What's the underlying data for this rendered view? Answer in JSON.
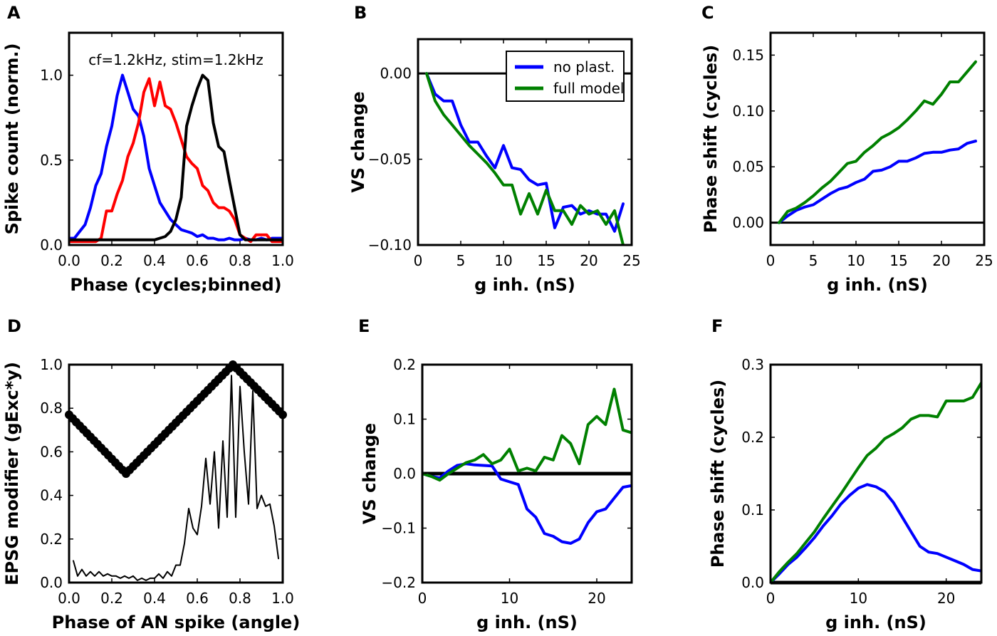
{
  "colors": {
    "blue": "#0000ff",
    "red": "#ff0000",
    "black": "#000000",
    "green": "#008000"
  },
  "chart_data": [
    {
      "id": "A",
      "panel_label": "A",
      "type": "line",
      "annotation": "cf=1.2kHz, stim=1.2kHz",
      "xlabel": "Phase (cycles;binned)",
      "ylabel": "Spike count (norm.)",
      "xlim": [
        0,
        1
      ],
      "ylim": [
        0,
        1.25
      ],
      "xticks": [
        0,
        0.2,
        0.4,
        0.6,
        0.8,
        1.0
      ],
      "xtick_labels": [
        "0.0",
        "0.2",
        "0.4",
        "0.6",
        "0.8",
        "1.0"
      ],
      "yticks": [
        0,
        0.5,
        1.0
      ],
      "ytick_labels": [
        "0.0",
        "0.5",
        "1.0"
      ],
      "series": [
        {
          "name": "blue",
          "color": "#0000ff",
          "width": 4,
          "x": [
            0.0,
            0.025,
            0.05,
            0.075,
            0.1,
            0.125,
            0.15,
            0.175,
            0.2,
            0.225,
            0.25,
            0.275,
            0.3,
            0.325,
            0.35,
            0.375,
            0.4,
            0.425,
            0.45,
            0.475,
            0.5,
            0.525,
            0.55,
            0.575,
            0.6,
            0.625,
            0.65,
            0.675,
            0.7,
            0.725,
            0.75,
            0.775,
            0.8,
            0.825,
            0.85,
            0.875,
            0.9,
            0.925,
            0.95,
            0.975,
            1.0
          ],
          "y": [
            0.04,
            0.04,
            0.08,
            0.12,
            0.22,
            0.35,
            0.42,
            0.58,
            0.7,
            0.88,
            1.0,
            0.9,
            0.8,
            0.76,
            0.64,
            0.45,
            0.35,
            0.25,
            0.2,
            0.15,
            0.12,
            0.09,
            0.08,
            0.07,
            0.05,
            0.06,
            0.04,
            0.04,
            0.03,
            0.03,
            0.04,
            0.03,
            0.03,
            0.04,
            0.03,
            0.03,
            0.04,
            0.03,
            0.04,
            0.04,
            0.04
          ]
        },
        {
          "name": "red",
          "color": "#ff0000",
          "width": 4,
          "x": [
            0.0,
            0.025,
            0.05,
            0.075,
            0.1,
            0.125,
            0.15,
            0.175,
            0.2,
            0.225,
            0.25,
            0.275,
            0.3,
            0.325,
            0.35,
            0.375,
            0.4,
            0.425,
            0.45,
            0.475,
            0.5,
            0.525,
            0.55,
            0.575,
            0.6,
            0.625,
            0.65,
            0.675,
            0.7,
            0.725,
            0.75,
            0.775,
            0.8,
            0.825,
            0.85,
            0.875,
            0.9,
            0.925,
            0.95,
            0.975,
            1.0
          ],
          "y": [
            0.02,
            0.02,
            0.02,
            0.02,
            0.02,
            0.02,
            0.04,
            0.2,
            0.2,
            0.3,
            0.38,
            0.52,
            0.6,
            0.72,
            0.9,
            0.98,
            0.82,
            0.96,
            0.82,
            0.8,
            0.72,
            0.62,
            0.52,
            0.48,
            0.45,
            0.35,
            0.32,
            0.25,
            0.22,
            0.22,
            0.2,
            0.15,
            0.06,
            0.04,
            0.02,
            0.06,
            0.06,
            0.06,
            0.02,
            0.02,
            0.02
          ]
        },
        {
          "name": "black",
          "color": "#000000",
          "width": 4,
          "x": [
            0.0,
            0.05,
            0.1,
            0.15,
            0.2,
            0.25,
            0.3,
            0.35,
            0.4,
            0.45,
            0.475,
            0.5,
            0.525,
            0.55,
            0.575,
            0.6,
            0.625,
            0.65,
            0.675,
            0.7,
            0.725,
            0.75,
            0.775,
            0.8,
            0.825,
            0.85,
            0.9,
            0.95,
            1.0
          ],
          "y": [
            0.03,
            0.03,
            0.03,
            0.03,
            0.03,
            0.03,
            0.03,
            0.03,
            0.03,
            0.05,
            0.08,
            0.15,
            0.28,
            0.7,
            0.82,
            0.92,
            1.0,
            0.97,
            0.72,
            0.58,
            0.55,
            0.38,
            0.22,
            0.06,
            0.03,
            0.03,
            0.03,
            0.03,
            0.03
          ]
        }
      ]
    },
    {
      "id": "B",
      "panel_label": "B",
      "type": "line",
      "xlabel": "g inh. (nS)",
      "ylabel": "VS change",
      "xlim": [
        0,
        25
      ],
      "ylim": [
        -0.1,
        0.02
      ],
      "xticks": [
        0,
        5,
        10,
        15,
        20,
        25
      ],
      "xtick_labels": [
        "0",
        "5",
        "10",
        "15",
        "20",
        "25"
      ],
      "yticks": [
        -0.1,
        -0.05,
        0
      ],
      "ytick_labels": [
        "−0.10",
        "−0.05",
        "0.00"
      ],
      "zero_line": true,
      "legend": {
        "position": "top-right",
        "entries": [
          {
            "label": "no plast.",
            "color": "#0000ff"
          },
          {
            "label": "full model",
            "color": "#008000"
          }
        ]
      },
      "series": [
        {
          "name": "no plast.",
          "color": "#0000ff",
          "width": 4,
          "x": [
            1,
            2,
            3,
            4,
            5,
            6,
            7,
            8,
            9,
            10,
            11,
            12,
            13,
            14,
            15,
            16,
            17,
            18,
            19,
            20,
            21,
            22,
            23,
            24
          ],
          "y": [
            0.0,
            -0.012,
            -0.016,
            -0.016,
            -0.03,
            -0.04,
            -0.04,
            -0.048,
            -0.055,
            -0.042,
            -0.055,
            -0.056,
            -0.062,
            -0.065,
            -0.064,
            -0.09,
            -0.078,
            -0.077,
            -0.082,
            -0.08,
            -0.082,
            -0.082,
            -0.092,
            -0.076
          ]
        },
        {
          "name": "full model",
          "color": "#008000",
          "width": 4,
          "x": [
            1,
            2,
            3,
            4,
            5,
            6,
            7,
            8,
            9,
            10,
            11,
            12,
            13,
            14,
            15,
            16,
            17,
            18,
            19,
            20,
            21,
            22,
            23,
            24
          ],
          "y": [
            0.0,
            -0.016,
            -0.024,
            -0.03,
            -0.036,
            -0.042,
            -0.047,
            -0.052,
            -0.058,
            -0.065,
            -0.065,
            -0.082,
            -0.07,
            -0.082,
            -0.068,
            -0.08,
            -0.08,
            -0.088,
            -0.077,
            -0.082,
            -0.08,
            -0.088,
            -0.08,
            -0.1
          ]
        }
      ]
    },
    {
      "id": "C",
      "panel_label": "C",
      "type": "line",
      "xlabel": "g inh. (nS)",
      "ylabel": "Phase shift (cycles)",
      "xlim": [
        0,
        25
      ],
      "ylim": [
        -0.02,
        0.17
      ],
      "xticks": [
        0,
        5,
        10,
        15,
        20,
        25
      ],
      "xtick_labels": [
        "0",
        "5",
        "10",
        "15",
        "20",
        "25"
      ],
      "yticks": [
        0,
        0.05,
        0.1,
        0.15
      ],
      "ytick_labels": [
        "0.00",
        "0.05",
        "0.10",
        "0.15"
      ],
      "zero_line": true,
      "series": [
        {
          "name": "no plast.",
          "color": "#0000ff",
          "width": 4,
          "x": [
            1,
            2,
            3,
            4,
            5,
            6,
            7,
            8,
            9,
            10,
            11,
            12,
            13,
            14,
            15,
            16,
            17,
            18,
            19,
            20,
            21,
            22,
            23,
            24
          ],
          "y": [
            0.0,
            0.006,
            0.011,
            0.014,
            0.016,
            0.021,
            0.026,
            0.03,
            0.032,
            0.036,
            0.039,
            0.046,
            0.047,
            0.05,
            0.055,
            0.055,
            0.058,
            0.062,
            0.063,
            0.063,
            0.065,
            0.066,
            0.071,
            0.073
          ]
        },
        {
          "name": "full model",
          "color": "#008000",
          "width": 4,
          "x": [
            1,
            2,
            3,
            4,
            5,
            6,
            7,
            8,
            9,
            10,
            11,
            12,
            13,
            14,
            15,
            16,
            17,
            18,
            19,
            20,
            21,
            22,
            23,
            24
          ],
          "y": [
            0.0,
            0.01,
            0.013,
            0.018,
            0.024,
            0.031,
            0.037,
            0.045,
            0.053,
            0.055,
            0.063,
            0.069,
            0.076,
            0.08,
            0.085,
            0.092,
            0.1,
            0.109,
            0.106,
            0.115,
            0.126,
            0.126,
            0.135,
            0.144
          ]
        }
      ]
    },
    {
      "id": "D",
      "panel_label": "D",
      "type": "line",
      "xlabel": "Phase of AN spike (angle)",
      "ylabel": "EPSG modifier (gExc*y)",
      "xlim": [
        0,
        1
      ],
      "ylim": [
        0,
        1
      ],
      "xticks": [
        0,
        0.2,
        0.4,
        0.6,
        0.8,
        1.0
      ],
      "xtick_labels": [
        "0.0",
        "0.2",
        "0.4",
        "0.6",
        "0.8",
        "1.0"
      ],
      "yticks": [
        0,
        0.2,
        0.4,
        0.6,
        0.8,
        1.0
      ],
      "ytick_labels": [
        "0.0",
        "0.2",
        "0.4",
        "0.6",
        "0.8",
        "1.0"
      ],
      "series": [
        {
          "name": "EPSG modifier",
          "color": "#000000",
          "width": 4,
          "markers": true,
          "x": [
            0.0,
            0.2667,
            0.7667,
            1.0
          ],
          "y": [
            0.77,
            0.5,
            1.0,
            0.77
          ]
        },
        {
          "name": "spike histogram",
          "color": "#000000",
          "width": 2,
          "x": [
            0.02,
            0.04,
            0.06,
            0.08,
            0.1,
            0.12,
            0.14,
            0.16,
            0.18,
            0.2,
            0.22,
            0.24,
            0.26,
            0.28,
            0.3,
            0.32,
            0.34,
            0.36,
            0.38,
            0.4,
            0.42,
            0.44,
            0.46,
            0.48,
            0.5,
            0.52,
            0.54,
            0.56,
            0.58,
            0.6,
            0.62,
            0.64,
            0.66,
            0.68,
            0.7,
            0.72,
            0.74,
            0.76,
            0.78,
            0.8,
            0.82,
            0.84,
            0.86,
            0.88,
            0.9,
            0.92,
            0.94,
            0.96,
            0.98
          ],
          "y": [
            0.1,
            0.03,
            0.06,
            0.03,
            0.05,
            0.03,
            0.05,
            0.03,
            0.04,
            0.03,
            0.03,
            0.02,
            0.03,
            0.02,
            0.03,
            0.01,
            0.02,
            0.01,
            0.02,
            0.02,
            0.04,
            0.02,
            0.05,
            0.03,
            0.08,
            0.08,
            0.18,
            0.34,
            0.25,
            0.22,
            0.35,
            0.57,
            0.36,
            0.6,
            0.25,
            0.65,
            0.3,
            0.95,
            0.3,
            0.9,
            0.6,
            0.36,
            0.88,
            0.34,
            0.4,
            0.35,
            0.36,
            0.26,
            0.11
          ]
        }
      ]
    },
    {
      "id": "E",
      "panel_label": "E",
      "type": "line",
      "xlabel": "g inh. (nS)",
      "ylabel": "VS change",
      "xlim": [
        0,
        24
      ],
      "ylim": [
        -0.2,
        0.2
      ],
      "xticks": [
        0,
        10,
        20
      ],
      "xtick_labels": [
        "0",
        "10",
        "20"
      ],
      "yticks": [
        -0.2,
        -0.1,
        0,
        0.1,
        0.2
      ],
      "ytick_labels": [
        "−0.2",
        "−0.1",
        "0.0",
        "0.1",
        "0.2"
      ],
      "zero_line": true,
      "zero_line_width": 5,
      "series": [
        {
          "name": "no plast.",
          "color": "#0000ff",
          "width": 4,
          "x": [
            0,
            1,
            2,
            3,
            4,
            5,
            6,
            7,
            8,
            9,
            10,
            11,
            12,
            13,
            14,
            15,
            16,
            17,
            18,
            19,
            20,
            21,
            22,
            23,
            24
          ],
          "y": [
            0.0,
            -0.005,
            -0.008,
            0.005,
            0.015,
            0.018,
            0.016,
            0.015,
            0.014,
            -0.01,
            -0.015,
            -0.02,
            -0.065,
            -0.08,
            -0.11,
            -0.115,
            -0.125,
            -0.128,
            -0.12,
            -0.09,
            -0.07,
            -0.065,
            -0.045,
            -0.025,
            -0.022
          ]
        },
        {
          "name": "full model",
          "color": "#008000",
          "width": 4,
          "x": [
            0,
            1,
            2,
            3,
            4,
            5,
            6,
            7,
            8,
            9,
            10,
            11,
            12,
            13,
            14,
            15,
            16,
            17,
            18,
            19,
            20,
            21,
            22,
            23,
            24
          ],
          "y": [
            0.0,
            -0.005,
            -0.012,
            0.0,
            0.01,
            0.02,
            0.025,
            0.035,
            0.018,
            0.025,
            0.045,
            0.005,
            0.01,
            0.005,
            0.03,
            0.025,
            0.07,
            0.055,
            0.018,
            0.09,
            0.105,
            0.09,
            0.155,
            0.08,
            0.075
          ]
        }
      ]
    },
    {
      "id": "F",
      "panel_label": "F",
      "type": "line",
      "xlabel": "g inh. (nS)",
      "ylabel": "Phase shift (cycles)",
      "xlim": [
        0,
        24
      ],
      "ylim": [
        0,
        0.3
      ],
      "xticks": [
        0,
        10,
        20
      ],
      "xtick_labels": [
        "0",
        "10",
        "20"
      ],
      "yticks": [
        0,
        0.1,
        0.2,
        0.3
      ],
      "ytick_labels": [
        "0.0",
        "0.1",
        "0.2",
        "0.3"
      ],
      "zero_line": true,
      "zero_line_width": 5,
      "series": [
        {
          "name": "no plast.",
          "color": "#0000ff",
          "width": 4,
          "x": [
            0,
            1,
            2,
            3,
            4,
            5,
            6,
            7,
            8,
            9,
            10,
            11,
            12,
            13,
            14,
            15,
            16,
            17,
            18,
            19,
            20,
            21,
            22,
            23,
            24
          ],
          "y": [
            0.0,
            0.012,
            0.025,
            0.035,
            0.048,
            0.062,
            0.078,
            0.092,
            0.108,
            0.12,
            0.13,
            0.135,
            0.132,
            0.125,
            0.11,
            0.09,
            0.07,
            0.05,
            0.042,
            0.04,
            0.035,
            0.03,
            0.025,
            0.018,
            0.016
          ]
        },
        {
          "name": "full model",
          "color": "#008000",
          "width": 4,
          "x": [
            0,
            1,
            2,
            3,
            4,
            5,
            6,
            7,
            8,
            9,
            10,
            11,
            12,
            13,
            14,
            15,
            16,
            17,
            18,
            19,
            20,
            21,
            22,
            23,
            24
          ],
          "y": [
            0.0,
            0.015,
            0.028,
            0.04,
            0.055,
            0.07,
            0.088,
            0.105,
            0.122,
            0.14,
            0.158,
            0.175,
            0.185,
            0.198,
            0.205,
            0.213,
            0.225,
            0.23,
            0.23,
            0.228,
            0.25,
            0.25,
            0.25,
            0.255,
            0.275
          ]
        }
      ]
    }
  ]
}
